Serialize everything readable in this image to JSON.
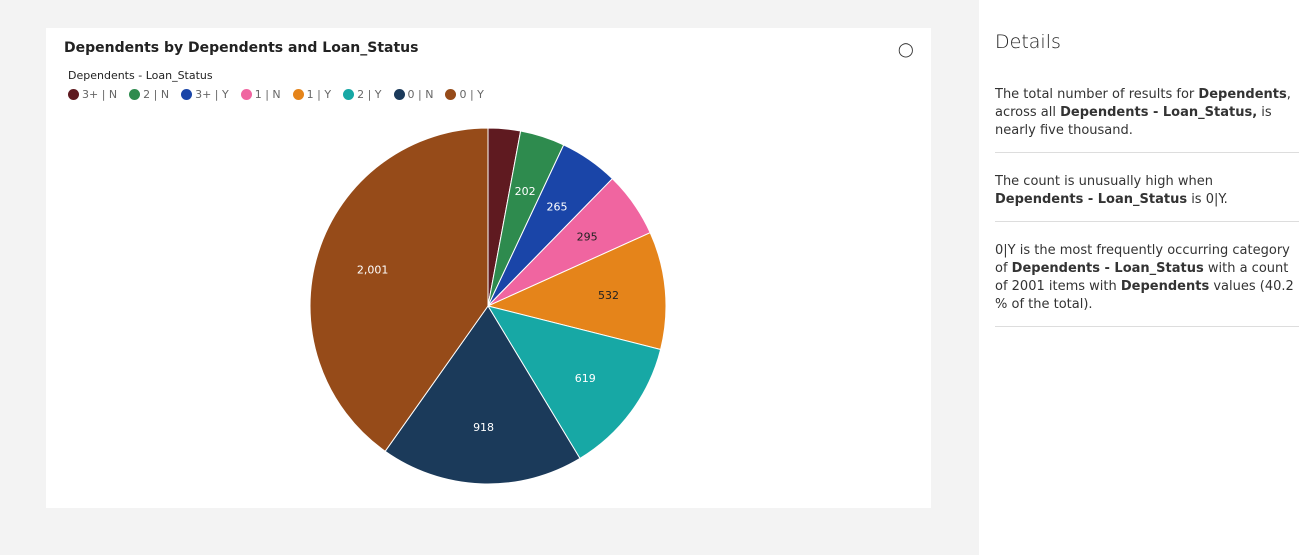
{
  "chart_data": {
    "type": "pie",
    "title": "Dependents by Dependents and Loan_Status",
    "legend_title": "Dependents - Loan_Status",
    "legend_placement": "top-left",
    "categories": [
      "3+ | N",
      "2 | N",
      "3+ | Y",
      "1 | N",
      "1 | Y",
      "2 | Y",
      "0 | N",
      "0 | Y"
    ],
    "values": [
      146,
      202,
      265,
      295,
      532,
      619,
      918,
      2001
    ],
    "labels": [
      "",
      "202",
      "265",
      "295",
      "532",
      "619",
      "918",
      "2,001"
    ],
    "colors": [
      "#5f1a20",
      "#2e8b4e",
      "#1a45a8",
      "#f065a0",
      "#e5841a",
      "#17a8a5",
      "#1b3a5a",
      "#964b19"
    ],
    "label_colors": [
      "#fff",
      "#fff",
      "#fff",
      "#222",
      "#222",
      "#fff",
      "#fff",
      "#fff"
    ]
  },
  "header": {
    "insight_icon": "lightbulb-icon"
  },
  "details": {
    "title": "Details",
    "insights": [
      [
        {
          "t": "The total number of results for "
        },
        {
          "t": "Dependents",
          "b": 1
        },
        {
          "t": ", across all "
        },
        {
          "t": "Dependents - Loan_Status,",
          "b": 1
        },
        {
          "t": " is nearly five thousand."
        }
      ],
      [
        {
          "t": "The count is unusually high when "
        },
        {
          "t": "Dependents - Loan_Status",
          "b": 1
        },
        {
          "t": " is 0|Y."
        }
      ],
      [
        {
          "t": "0|Y is the most frequently occurring category of "
        },
        {
          "t": "Dependents - Loan_Status",
          "b": 1
        },
        {
          "t": " with a count of 2001 items with "
        },
        {
          "t": "Dependents",
          "b": 1
        },
        {
          "t": " values (40.2 % of the total)."
        }
      ]
    ]
  }
}
